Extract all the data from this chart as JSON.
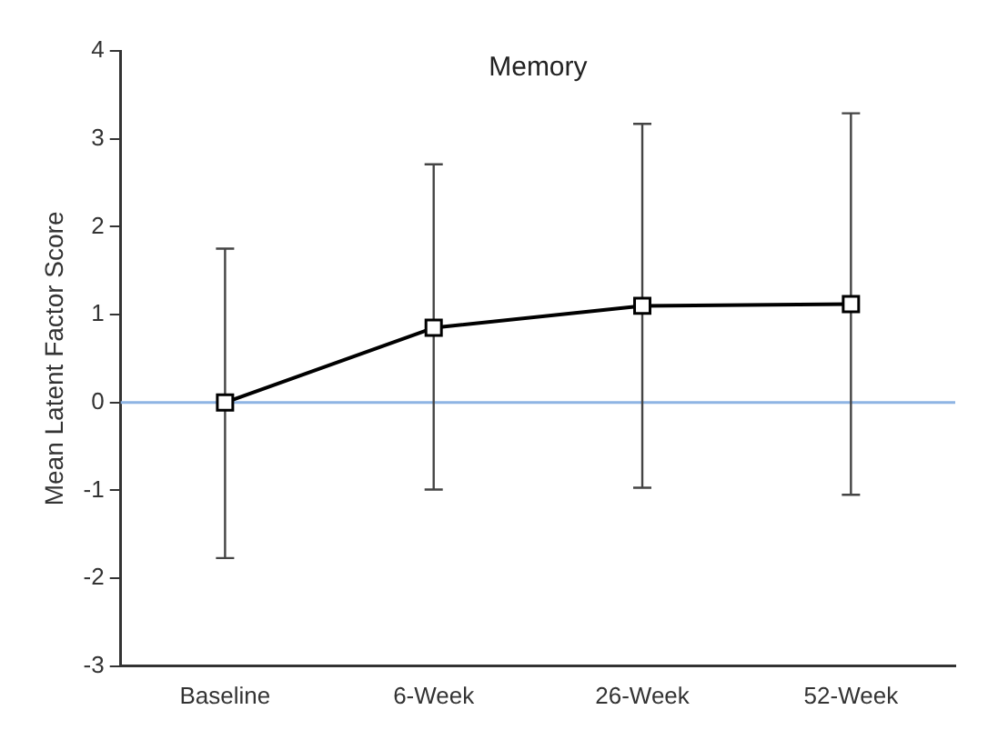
{
  "chart_data": {
    "type": "line",
    "title": "Memory",
    "ylabel": "Mean Latent Factor Score",
    "categories": [
      "Baseline",
      "6-Week",
      "26-Week",
      "52-Week"
    ],
    "series": [
      {
        "color": "#000000",
        "values": [
          0,
          0.85,
          1.1,
          1.12
        ],
        "errors": [
          [
            -1.77,
            1.75
          ],
          [
            -0.99,
            2.71
          ],
          [
            -0.97,
            3.17
          ],
          [
            -1.05,
            3.29
          ]
        ]
      }
    ],
    "ylim": [
      -3,
      4
    ],
    "yticks": [
      -3,
      -2,
      -1,
      0,
      1,
      2,
      3,
      4
    ],
    "ref_lines": [
      {
        "axis": "y",
        "value": 0,
        "color": "#8eb4e3"
      }
    ],
    "grid": false,
    "legend": false,
    "marker": "square",
    "line_style": "solid"
  }
}
